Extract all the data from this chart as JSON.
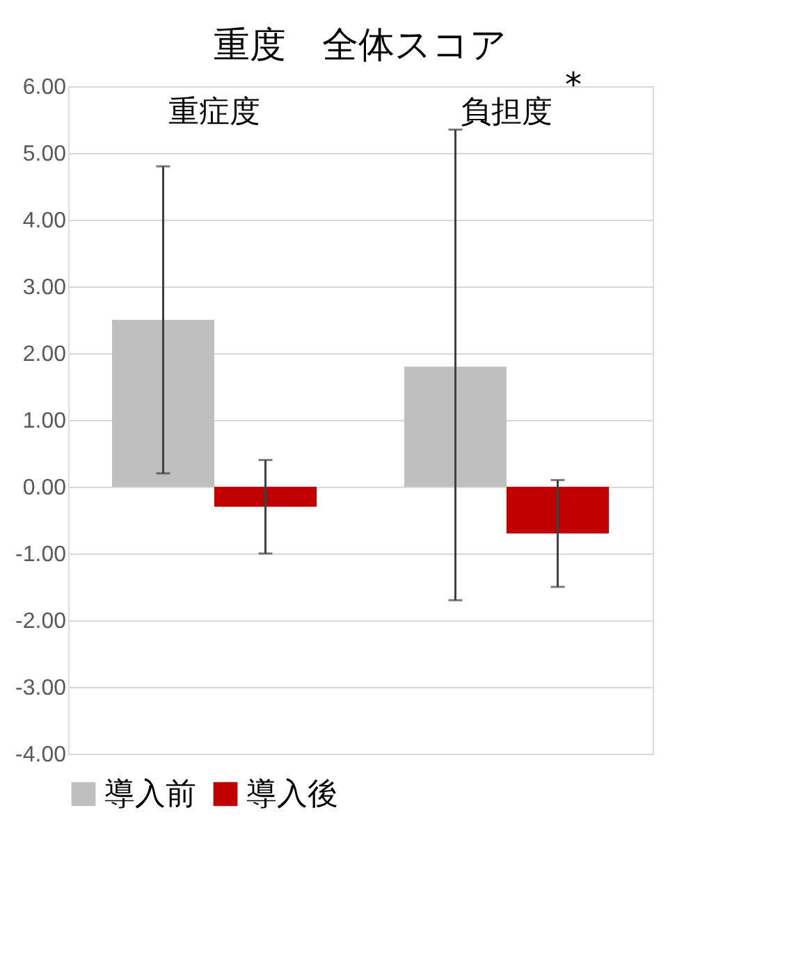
{
  "chart_data": {
    "type": "bar",
    "title": "重度　全体スコア",
    "categories": [
      "重症度",
      "負担度"
    ],
    "series": [
      {
        "name": "導入前",
        "color": "#bfbfbf",
        "values": [
          2.5,
          1.8
        ],
        "errors": [
          [
            0.2,
            4.8
          ],
          [
            -1.7,
            5.35
          ]
        ]
      },
      {
        "name": "導入後",
        "color": "#c00000",
        "values": [
          -0.3,
          -0.7
        ],
        "errors": [
          [
            -1.0,
            0.4
          ],
          [
            -1.5,
            0.1
          ]
        ]
      }
    ],
    "ylim": [
      -4,
      6
    ],
    "yticks": [
      {
        "value": -4,
        "label": "-4.00"
      },
      {
        "value": -3,
        "label": "-3.00"
      },
      {
        "value": -2,
        "label": "-2.00"
      },
      {
        "value": -1,
        "label": "-1.00"
      },
      {
        "value": 0,
        "label": "0.00"
      },
      {
        "value": 1,
        "label": "1.00"
      },
      {
        "value": 2,
        "label": "2.00"
      },
      {
        "value": 3,
        "label": "3.00"
      },
      {
        "value": 4,
        "label": "4.00"
      },
      {
        "value": 5,
        "label": "5.00"
      },
      {
        "value": 6,
        "label": "6.00"
      }
    ],
    "annotations": [
      "*"
    ],
    "grid": "y",
    "legend": "bottom"
  }
}
